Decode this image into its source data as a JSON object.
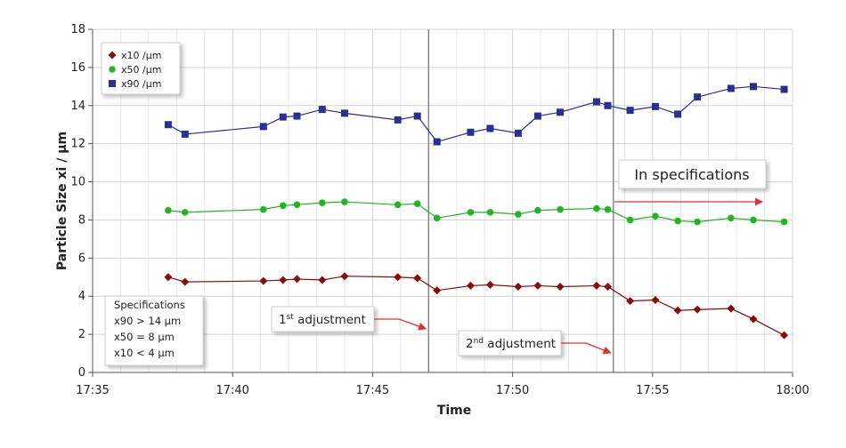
{
  "chart_data": {
    "type": "line",
    "xlabel": "Time",
    "ylabel": "Particle Size xi / µm",
    "x": [
      1057.7,
      1058.3,
      1061.1,
      1061.8,
      1062.3,
      1063.2,
      1064.0,
      1065.9,
      1066.6,
      1067.3,
      1068.5,
      1069.2,
      1070.2,
      1070.9,
      1071.7,
      1073.0,
      1073.4,
      1074.2,
      1075.1,
      1075.9,
      1076.6,
      1077.8,
      1078.6,
      1079.7
    ],
    "series": [
      {
        "name": "x10 /µm",
        "color": "#8b0a0a",
        "marker": "diamond",
        "values": [
          5.0,
          4.75,
          4.8,
          4.85,
          4.9,
          4.85,
          5.05,
          5.0,
          4.95,
          4.3,
          4.55,
          4.6,
          4.5,
          4.55,
          4.5,
          4.55,
          4.5,
          3.75,
          3.8,
          3.25,
          3.3,
          3.35,
          2.8,
          1.95
        ]
      },
      {
        "name": "x50 /µm",
        "color": "#22b522",
        "marker": "circle",
        "values": [
          8.5,
          8.4,
          8.55,
          8.75,
          8.8,
          8.9,
          8.95,
          8.8,
          8.85,
          8.1,
          8.4,
          8.4,
          8.3,
          8.5,
          8.55,
          8.6,
          8.55,
          8.0,
          8.2,
          7.95,
          7.9,
          8.1,
          8.0,
          7.9
        ]
      },
      {
        "name": "x90 /µm",
        "color": "#2b2f90",
        "marker": "square",
        "values": [
          13.0,
          12.5,
          12.9,
          13.4,
          13.45,
          13.8,
          13.6,
          13.25,
          13.45,
          12.1,
          12.6,
          12.8,
          12.55,
          13.45,
          13.65,
          14.2,
          14.0,
          13.75,
          13.95,
          13.55,
          14.45,
          14.9,
          15.0,
          14.85
        ]
      }
    ],
    "xlim": [
      1055,
      1080
    ],
    "xticks": [
      {
        "value": 1055,
        "label": "17:35"
      },
      {
        "value": 1060,
        "label": "17:40"
      },
      {
        "value": 1065,
        "label": "17:45"
      },
      {
        "value": 1070,
        "label": "17:50"
      },
      {
        "value": 1075,
        "label": "17:55"
      },
      {
        "value": 1080,
        "label": "18:00"
      }
    ],
    "ylim": [
      0,
      18
    ],
    "yticks": [
      0,
      2,
      4,
      6,
      8,
      10,
      12,
      14,
      16,
      18
    ],
    "grid": true,
    "legend": "upper left",
    "adjustments": [
      {
        "x": 1067.0,
        "label": [
          "1",
          "st",
          " adjustment"
        ]
      },
      {
        "x": 1073.6,
        "label": [
          "2",
          "nd",
          " adjustment"
        ]
      }
    ],
    "in_spec_label": "In specifications",
    "specifications": [
      "Specifications",
      "x90 > 14 µm",
      "x50 = 8 µm",
      "x10 < 4 µm"
    ]
  }
}
